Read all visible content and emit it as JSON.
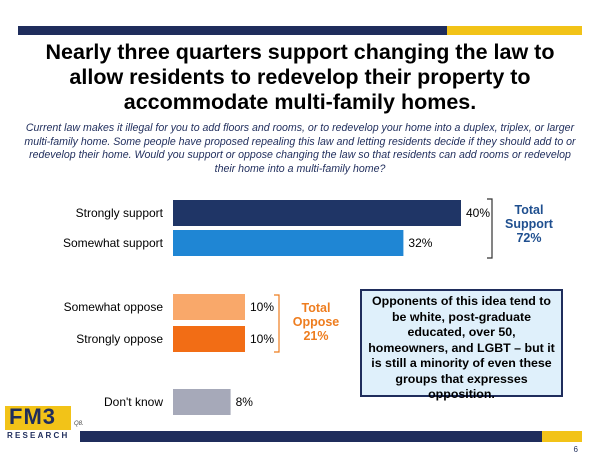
{
  "title": "Nearly three quarters support changing the law to allow residents to redevelop their property to accommodate multi-family homes.",
  "question": "Current law makes it illegal for you to add floors and rooms, or to redevelop your home into a duplex, triplex, or larger multi-family home. Some people have proposed repealing this law and letting residents decide if they should add to or redevelop their home. Would you support or oppose changing the law so that residents can add rooms or redevelop their home into a multi-family home?",
  "chart_data": {
    "type": "bar",
    "orientation": "horizontal",
    "categories": [
      "Strongly support",
      "Somewhat support",
      "Somewhat oppose",
      "Strongly oppose",
      "Don't know"
    ],
    "values": [
      40,
      32,
      10,
      10,
      8
    ],
    "value_labels": [
      "40%",
      "32%",
      "10%",
      "10%",
      "8%"
    ],
    "colors": [
      "#1f3566",
      "#1f86d4",
      "#f9a86a",
      "#f26d15",
      "#a6a9b9"
    ],
    "title": "",
    "xlabel": "",
    "ylabel": "",
    "xlim": [
      0,
      45
    ],
    "grid": false
  },
  "totals": {
    "support_label": "Total Support",
    "support_value": "72%",
    "oppose_label": "Total Oppose",
    "oppose_value": "21%",
    "support_color": "#1f4f8f",
    "oppose_color": "#ee7d1f"
  },
  "callout": "Opponents of this idea tend to be white, post-graduate educated, over 50, homeowners, and LGBT – but it is still a minority of even these groups that expresses opposition.",
  "logo": {
    "name": "FM3",
    "subtitle": "RESEARCH"
  },
  "question_ref": "Q8.",
  "page_number": "6",
  "brand_colors": {
    "navy": "#1f2d5c",
    "gold": "#f2c318"
  }
}
